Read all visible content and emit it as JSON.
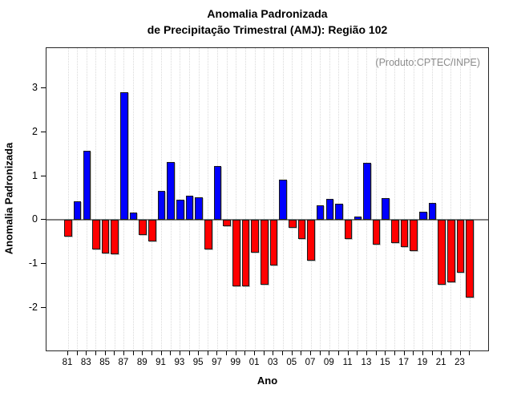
{
  "title": {
    "line1": "Anomalia Padronizada",
    "line2": "de Precipitação Trimestral (AMJ): Região 102"
  },
  "annotation": "(Produto:CPTEC/INPE)",
  "colors": {
    "positive": "#0000ff",
    "negative": "#ff0000",
    "bar_border": "#1a1a1a",
    "grid": "#d9d9d9",
    "zero_line": "#808080",
    "annotation": "#8c8c8c",
    "axis": "#000000"
  },
  "chart_data": {
    "type": "bar",
    "title": "Anomalia Padronizada de Precipitação Trimestral (AMJ): Região 102",
    "xlabel": "Ano",
    "ylabel": "Anomalia Padronizada",
    "legend": "none",
    "grid": "vertical-dotted",
    "ylim": [
      -3.0,
      3.9
    ],
    "y_ticks": [
      "3",
      "2",
      "1",
      "0",
      "-1",
      "-2"
    ],
    "y_tick_values": [
      3,
      2,
      1,
      0,
      -1,
      -2
    ],
    "x_tick_labels": [
      "81",
      "83",
      "85",
      "87",
      "89",
      "91",
      "93",
      "95",
      "97",
      "99",
      "01",
      "03",
      "05",
      "07",
      "09",
      "11",
      "13",
      "15",
      "17",
      "19",
      "21",
      "23"
    ],
    "categories": [
      "1981",
      "1982",
      "1983",
      "1984",
      "1985",
      "1986",
      "1987",
      "1988",
      "1989",
      "1990",
      "1991",
      "1992",
      "1993",
      "1994",
      "1995",
      "1996",
      "1997",
      "1998",
      "1999",
      "2000",
      "2001",
      "2002",
      "2003",
      "2004",
      "2005",
      "2006",
      "2007",
      "2008",
      "2009",
      "2010",
      "2011",
      "2012",
      "2013",
      "2014",
      "2015",
      "2016",
      "2017",
      "2018",
      "2019",
      "2020",
      "2021",
      "2022",
      "2023",
      "2024"
    ],
    "values": [
      -0.37,
      0.42,
      1.57,
      -0.67,
      -0.77,
      -0.79,
      2.92,
      0.17,
      -0.34,
      -0.49,
      0.67,
      1.33,
      0.47,
      0.56,
      0.52,
      -0.67,
      1.24,
      -0.15,
      -1.52,
      -1.52,
      -0.74,
      -1.48,
      -1.03,
      0.92,
      -0.17,
      -0.44,
      -0.93,
      0.33,
      0.48,
      0.37,
      -0.43,
      0.07,
      1.31,
      -0.56,
      0.5,
      -0.52,
      -0.61,
      -0.7,
      0.18,
      0.39,
      -1.48,
      -1.43,
      -1.2,
      -1.76
    ]
  }
}
